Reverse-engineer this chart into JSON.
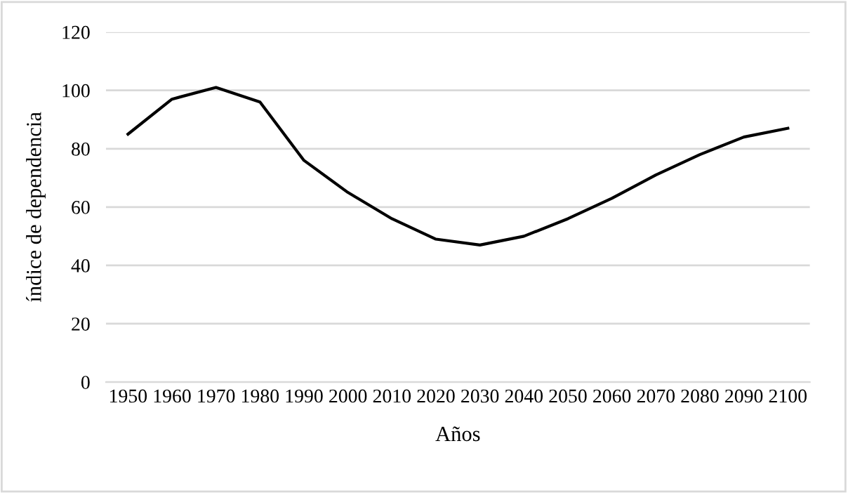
{
  "chart_data": {
    "type": "line",
    "xlabel": "Años",
    "ylabel": "índice de dependencia",
    "categories": [
      "1950",
      "1960",
      "1970",
      "1980",
      "1990",
      "2000",
      "2010",
      "2020",
      "2030",
      "2040",
      "2050",
      "2060",
      "2070",
      "2080",
      "2090",
      "2100"
    ],
    "series": [
      {
        "color": "#000000",
        "values": [
          85,
          97,
          101,
          96,
          76,
          65,
          56,
          49,
          47,
          50,
          56,
          63,
          71,
          78,
          84,
          87
        ]
      }
    ],
    "ylim": [
      0,
      120
    ],
    "yticks": [
      0,
      20,
      40,
      60,
      80,
      100,
      120
    ],
    "grid": "y",
    "marker": "none",
    "line_style": "solid",
    "legend": false
  }
}
